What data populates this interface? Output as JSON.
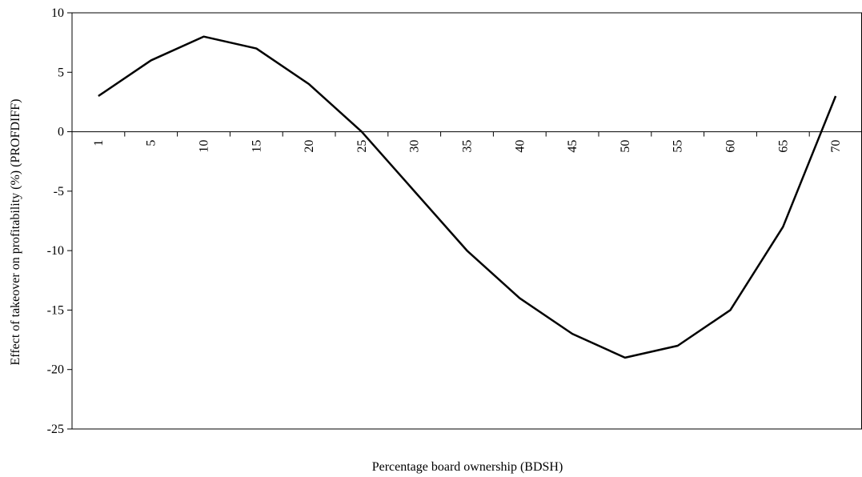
{
  "chart_data": {
    "type": "line",
    "title": "",
    "xlabel": "Percentage board ownership (BDSH)",
    "ylabel": "Effect of takeover on profitability (%) (PROFDIFF)",
    "ylim": [
      -25,
      10
    ],
    "yticks": [
      "10",
      "5",
      "0",
      "-5",
      "-10",
      "-15",
      "-20",
      "-25"
    ],
    "ytick_values": [
      10,
      5,
      0,
      -5,
      -10,
      -15,
      -20,
      -25
    ],
    "categories": [
      "1",
      "5",
      "10",
      "15",
      "20",
      "25",
      "30",
      "35",
      "40",
      "45",
      "50",
      "55",
      "60",
      "65",
      "70"
    ],
    "grid": false,
    "legend": "none",
    "series": [
      {
        "values": [
          3,
          6,
          8,
          7,
          4,
          0,
          -5,
          -10,
          -14,
          -17,
          -19,
          -18,
          -15,
          -8,
          3
        ],
        "color": "#000000"
      }
    ]
  }
}
